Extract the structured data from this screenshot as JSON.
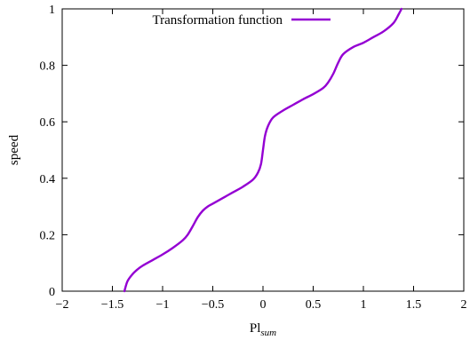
{
  "chart_data": {
    "type": "line",
    "title": "",
    "xlabel": "Pl",
    "xlabel_sub": "sum",
    "ylabel": "speed",
    "xlim": [
      -2,
      2
    ],
    "ylim": [
      0,
      1
    ],
    "x_ticks": [
      -2,
      -1.5,
      -1,
      -0.5,
      0,
      0.5,
      1,
      1.5,
      2
    ],
    "x_tick_labels": [
      "−2",
      "−1.5",
      "−1",
      "−0.5",
      "0",
      "0.5",
      "1",
      "1.5",
      "2"
    ],
    "y_ticks": [
      0,
      0.2,
      0.4,
      0.6,
      0.8,
      1
    ],
    "y_tick_labels": [
      "0",
      "0.2",
      "0.4",
      "0.6",
      "0.8",
      "1"
    ],
    "grid": false,
    "legend_position": "top-left",
    "series": [
      {
        "name": "Transformation function",
        "color": "#9400d3",
        "x": [
          -1.38,
          -1.35,
          -1.3,
          -1.25,
          -1.2,
          -1.1,
          -1.0,
          -0.9,
          -0.8,
          -0.75,
          -0.7,
          -0.65,
          -0.6,
          -0.55,
          -0.5,
          -0.4,
          -0.3,
          -0.2,
          -0.1,
          -0.05,
          -0.02,
          0.0,
          0.02,
          0.05,
          0.1,
          0.2,
          0.3,
          0.4,
          0.5,
          0.6,
          0.65,
          0.7,
          0.75,
          0.8,
          0.9,
          1.0,
          1.1,
          1.2,
          1.3,
          1.35,
          1.38
        ],
        "y": [
          0.0,
          0.035,
          0.06,
          0.077,
          0.09,
          0.11,
          0.13,
          0.153,
          0.18,
          0.2,
          0.23,
          0.262,
          0.285,
          0.3,
          0.31,
          0.33,
          0.35,
          0.37,
          0.395,
          0.42,
          0.45,
          0.5,
          0.55,
          0.585,
          0.615,
          0.64,
          0.66,
          0.68,
          0.698,
          0.72,
          0.74,
          0.77,
          0.81,
          0.84,
          0.865,
          0.88,
          0.9,
          0.92,
          0.95,
          0.98,
          1.0
        ]
      }
    ]
  }
}
